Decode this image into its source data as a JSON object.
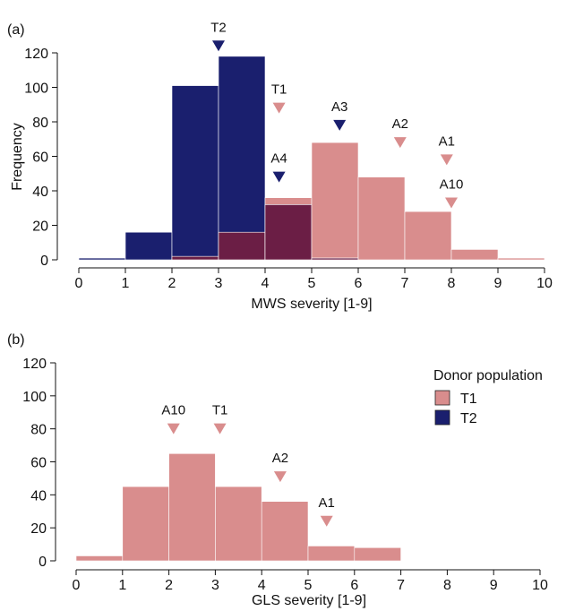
{
  "colors": {
    "T1": "#d98d8d",
    "T2": "#1a1f6e",
    "overlap": "#6b1e45",
    "axis": "#111111"
  },
  "legend": {
    "title": "Donor population",
    "entries": [
      {
        "label": "T1",
        "color": "#d98d8d"
      },
      {
        "label": "T2",
        "color": "#1a1f6e"
      }
    ]
  },
  "chart_data": [
    {
      "panel": "(a)",
      "type": "bar",
      "xlabel": "MWS severity [1-9]",
      "ylabel": "Frequency",
      "xlim": [
        0,
        10
      ],
      "ylim": [
        0,
        120
      ],
      "xticks": [
        "0",
        "1",
        "2",
        "3",
        "4",
        "5",
        "6",
        "7",
        "8",
        "9",
        "10"
      ],
      "yticks": [
        "0",
        "20",
        "40",
        "60",
        "80",
        "100",
        "120"
      ],
      "bin_edges": [
        0,
        1,
        2,
        3,
        4,
        5,
        6,
        7,
        8,
        9,
        10
      ],
      "series": [
        {
          "name": "T1",
          "values": [
            0,
            0,
            2,
            16,
            36,
            68,
            48,
            28,
            6,
            1
          ]
        },
        {
          "name": "T2",
          "values": [
            1,
            16,
            101,
            118,
            32,
            1,
            0,
            0,
            0,
            0
          ]
        }
      ],
      "markers": [
        {
          "label": "T2",
          "x": 3.0,
          "y": 124,
          "series": "T2"
        },
        {
          "label": "T1",
          "x": 4.3,
          "y": 88,
          "series": "T1"
        },
        {
          "label": "A4",
          "x": 4.3,
          "y": 48,
          "series": "T2"
        },
        {
          "label": "A3",
          "x": 5.6,
          "y": 78,
          "series": "T2"
        },
        {
          "label": "A2",
          "x": 6.9,
          "y": 68,
          "series": "T1"
        },
        {
          "label": "A1",
          "x": 7.9,
          "y": 58,
          "series": "T1"
        },
        {
          "label": "A10",
          "x": 8.0,
          "y": 33,
          "series": "T1"
        }
      ]
    },
    {
      "panel": "(b)",
      "type": "bar",
      "xlabel": "GLS severity [1-9]",
      "ylabel": "",
      "xlim": [
        0,
        10
      ],
      "ylim": [
        0,
        120
      ],
      "xticks": [
        "0",
        "1",
        "2",
        "3",
        "4",
        "5",
        "6",
        "7",
        "8",
        "9",
        "10"
      ],
      "yticks": [
        "0",
        "20",
        "40",
        "60",
        "80",
        "100",
        "120"
      ],
      "bin_edges": [
        0,
        1,
        2,
        3,
        4,
        5,
        6,
        7,
        8,
        9,
        10
      ],
      "series": [
        {
          "name": "T1",
          "values": [
            3,
            45,
            65,
            45,
            36,
            9,
            8,
            0,
            0,
            0
          ]
        }
      ],
      "markers": [
        {
          "label": "A10",
          "x": 2.1,
          "y": 80,
          "series": "T1"
        },
        {
          "label": "T1",
          "x": 3.1,
          "y": 80,
          "series": "T1"
        },
        {
          "label": "A2",
          "x": 4.4,
          "y": 51,
          "series": "T1"
        },
        {
          "label": "A1",
          "x": 5.4,
          "y": 24,
          "series": "T1"
        }
      ]
    }
  ]
}
